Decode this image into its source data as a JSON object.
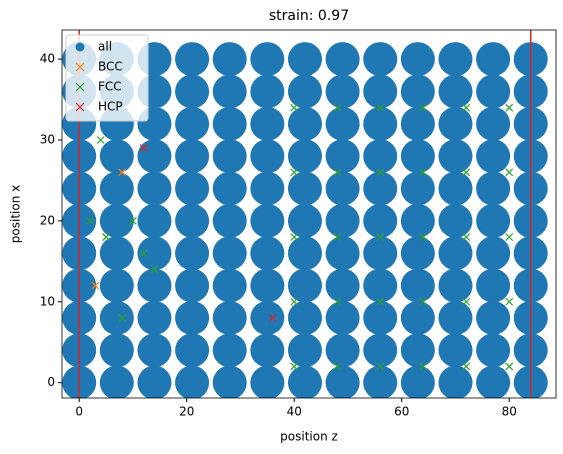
{
  "chart_data": {
    "type": "scatter",
    "title": "strain: 0.97",
    "xlabel": "position z",
    "ylabel": "position x",
    "xlim": [
      -3.2,
      88.7
    ],
    "ylim": [
      -1.9,
      43.6
    ],
    "xticks": [
      0,
      20,
      40,
      60,
      80
    ],
    "yticks": [
      0,
      10,
      20,
      30,
      40
    ],
    "grid": false,
    "legend": "upper left",
    "vlines": [
      0,
      84
    ],
    "vline_color": "#d62728",
    "series": [
      {
        "name": "all",
        "color": "#1f77b4",
        "marker": "o",
        "x": [
          0,
          7,
          14,
          21,
          28,
          35,
          42,
          49,
          56,
          63,
          70,
          77,
          84,
          0,
          7,
          14,
          21,
          28,
          35,
          42,
          49,
          56,
          63,
          70,
          77,
          84,
          0,
          7,
          14,
          21,
          28,
          35,
          42,
          49,
          56,
          63,
          70,
          77,
          84,
          0,
          7,
          14,
          21,
          28,
          35,
          42,
          49,
          56,
          63,
          70,
          77,
          84,
          0,
          7,
          14,
          21,
          28,
          35,
          42,
          49,
          56,
          63,
          70,
          77,
          84,
          0,
          7,
          14,
          21,
          28,
          35,
          42,
          49,
          56,
          63,
          70,
          77,
          84,
          0,
          7,
          14,
          21,
          28,
          35,
          42,
          49,
          56,
          63,
          70,
          77,
          84,
          0,
          7,
          14,
          21,
          28,
          35,
          42,
          49,
          56,
          63,
          70,
          77,
          84,
          0,
          7,
          14,
          21,
          28,
          35,
          42,
          49,
          56,
          63,
          70,
          77,
          84,
          0,
          7,
          14,
          21,
          28,
          35,
          42,
          49,
          56,
          63,
          70,
          77,
          84,
          0,
          7,
          14,
          21,
          28,
          35,
          42,
          49,
          56,
          63,
          70,
          77,
          84
        ],
        "values": [
          0,
          0,
          0,
          0,
          0,
          0,
          0,
          0,
          0,
          0,
          0,
          0,
          0,
          4,
          4,
          4,
          4,
          4,
          4,
          4,
          4,
          4,
          4,
          4,
          4,
          4,
          8,
          8,
          8,
          8,
          8,
          8,
          8,
          8,
          8,
          8,
          8,
          8,
          8,
          12,
          12,
          12,
          12,
          12,
          12,
          12,
          12,
          12,
          12,
          12,
          12,
          12,
          16,
          16,
          16,
          16,
          16,
          16,
          16,
          16,
          16,
          16,
          16,
          16,
          16,
          20,
          20,
          20,
          20,
          20,
          20,
          20,
          20,
          20,
          20,
          20,
          20,
          20,
          24,
          24,
          24,
          24,
          24,
          24,
          24,
          24,
          24,
          24,
          24,
          24,
          24,
          28,
          28,
          28,
          28,
          28,
          28,
          28,
          28,
          28,
          28,
          28,
          28,
          28,
          32,
          32,
          32,
          32,
          32,
          32,
          32,
          32,
          32,
          32,
          32,
          32,
          32,
          36,
          36,
          36,
          36,
          36,
          36,
          36,
          36,
          36,
          36,
          36,
          36,
          36,
          40,
          40,
          40,
          40,
          40,
          40,
          40,
          40,
          40,
          40,
          40,
          40,
          40
        ]
      },
      {
        "name": "BCC",
        "color": "#ff7f0e",
        "marker": "x",
        "x": [
          8,
          5,
          3
        ],
        "values": [
          26,
          18,
          12
        ]
      },
      {
        "name": "FCC",
        "color": "#2ca02c",
        "marker": "x",
        "x": [
          40,
          48,
          56,
          64,
          72,
          80,
          40,
          48,
          56,
          64,
          72,
          80,
          40,
          48,
          56,
          64,
          72,
          80,
          40,
          48,
          56,
          64,
          72,
          80,
          40,
          48,
          56,
          64,
          72,
          80,
          2,
          5,
          10,
          4,
          8,
          14,
          12
        ],
        "values": [
          2,
          2,
          2,
          2,
          2,
          2,
          10,
          10,
          10,
          10,
          10,
          10,
          18,
          18,
          18,
          18,
          18,
          18,
          26,
          26,
          26,
          26,
          26,
          26,
          34,
          34,
          34,
          34,
          34,
          34,
          20,
          18,
          20,
          30,
          8,
          14,
          16
        ]
      },
      {
        "name": "HCP",
        "color": "#d62728",
        "marker": "x",
        "x": [
          12,
          36
        ],
        "values": [
          29,
          8
        ]
      }
    ]
  }
}
